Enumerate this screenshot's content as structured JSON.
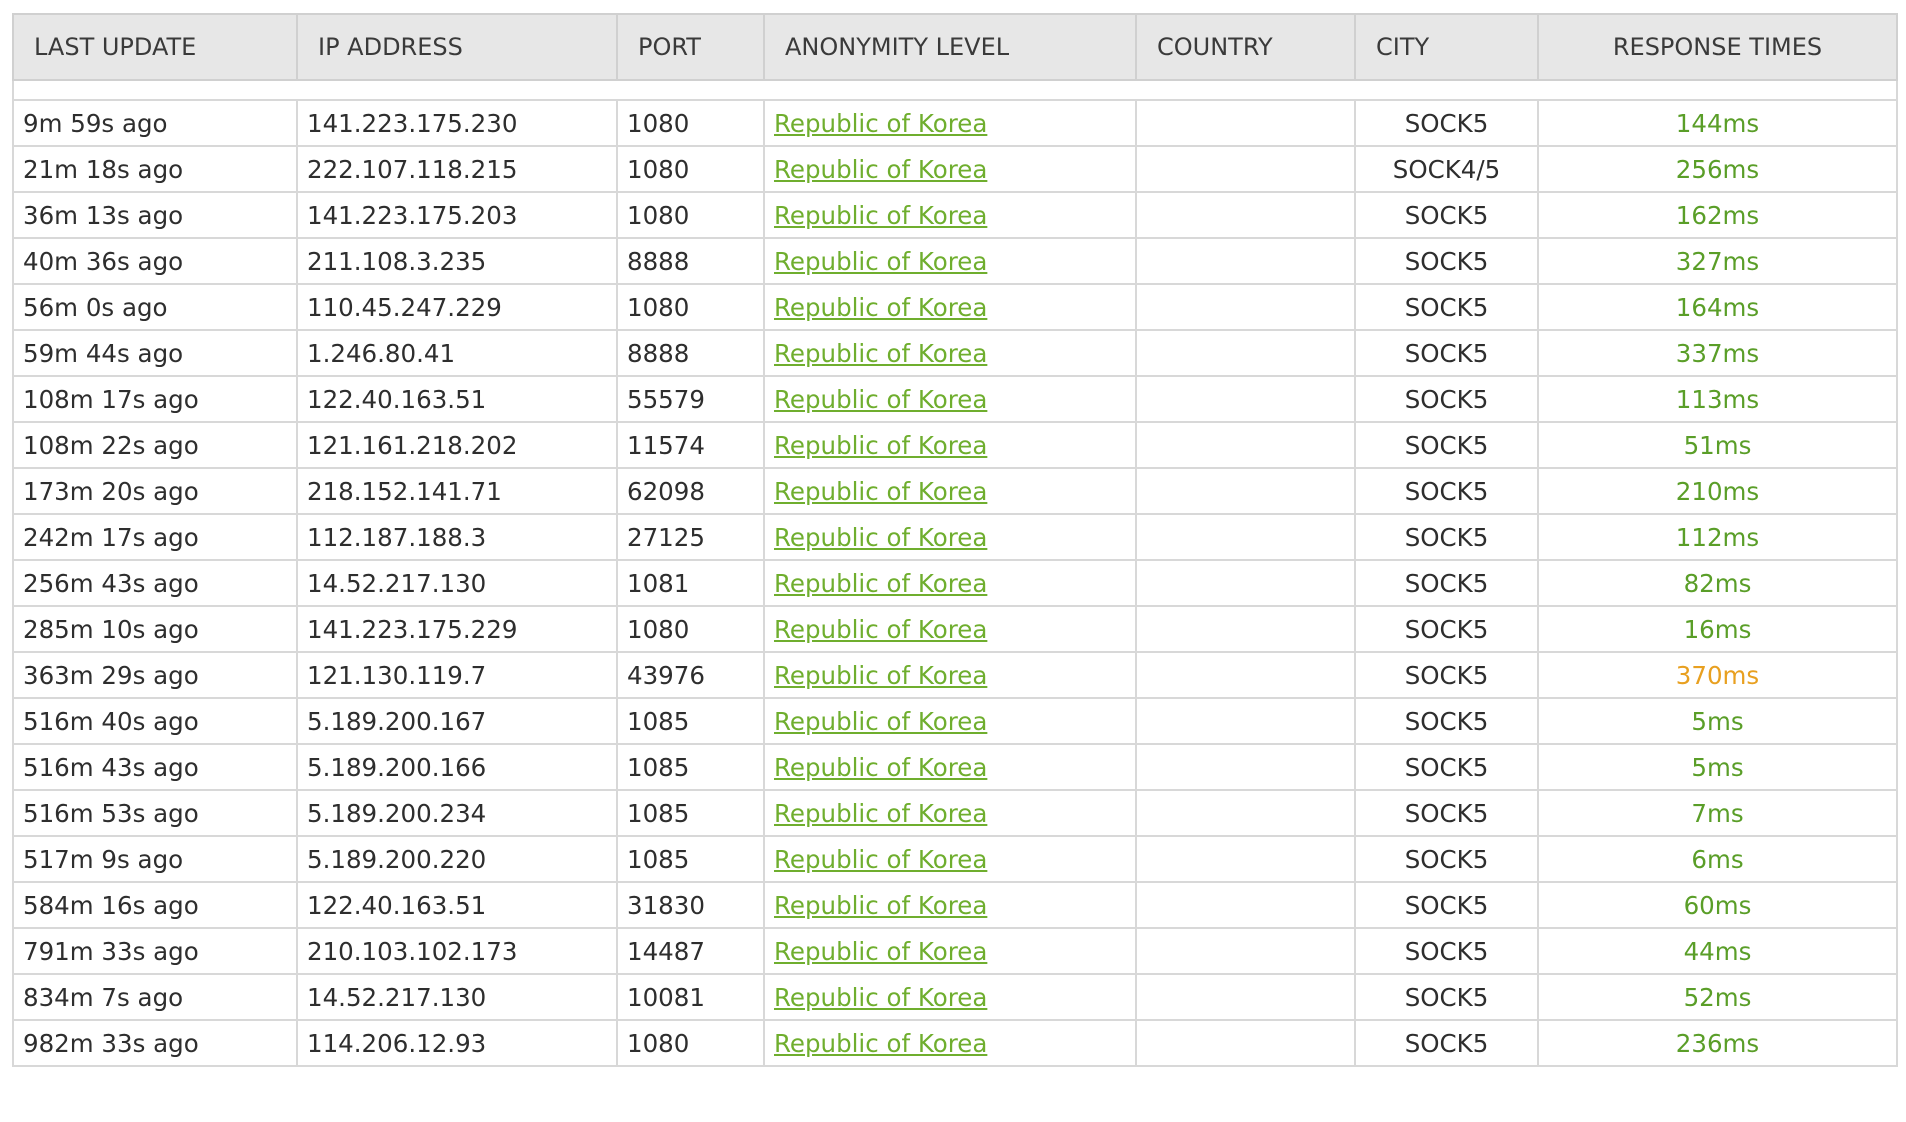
{
  "headers": [
    "LAST UPDATE",
    "IP ADDRESS",
    "PORT",
    "ANONYMITY LEVEL",
    "COUNTRY",
    "CITY",
    "RESPONSE TIMES"
  ],
  "colors": {
    "link": "#6fae2e",
    "fast": "#5a9e28",
    "slow": "#e8a020",
    "header_bg": "#e7e7e7"
  },
  "rows": [
    {
      "updated": "9m 59s ago",
      "ip": "141.223.175.230",
      "port": "1080",
      "anonymity": "Republic of Korea",
      "country": "",
      "city": "SOCK5",
      "response": "144ms",
      "speed": "fast"
    },
    {
      "updated": "21m 18s ago",
      "ip": "222.107.118.215",
      "port": "1080",
      "anonymity": "Republic of Korea",
      "country": "",
      "city": "SOCK4/5",
      "response": "256ms",
      "speed": "fast"
    },
    {
      "updated": "36m 13s ago",
      "ip": "141.223.175.203",
      "port": "1080",
      "anonymity": "Republic of Korea",
      "country": "",
      "city": "SOCK5",
      "response": "162ms",
      "speed": "fast"
    },
    {
      "updated": "40m 36s ago",
      "ip": "211.108.3.235",
      "port": "8888",
      "anonymity": "Republic of Korea",
      "country": "",
      "city": "SOCK5",
      "response": "327ms",
      "speed": "fast"
    },
    {
      "updated": "56m 0s ago",
      "ip": "110.45.247.229",
      "port": "1080",
      "anonymity": "Republic of Korea",
      "country": "",
      "city": "SOCK5",
      "response": "164ms",
      "speed": "fast"
    },
    {
      "updated": "59m 44s ago",
      "ip": "1.246.80.41",
      "port": "8888",
      "anonymity": "Republic of Korea",
      "country": "",
      "city": "SOCK5",
      "response": "337ms",
      "speed": "fast"
    },
    {
      "updated": "108m 17s ago",
      "ip": "122.40.163.51",
      "port": "55579",
      "anonymity": "Republic of Korea",
      "country": "",
      "city": "SOCK5",
      "response": "113ms",
      "speed": "fast"
    },
    {
      "updated": "108m 22s ago",
      "ip": "121.161.218.202",
      "port": "11574",
      "anonymity": "Republic of Korea",
      "country": "",
      "city": "SOCK5",
      "response": "51ms",
      "speed": "fast"
    },
    {
      "updated": "173m 20s ago",
      "ip": "218.152.141.71",
      "port": "62098",
      "anonymity": "Republic of Korea",
      "country": "",
      "city": "SOCK5",
      "response": "210ms",
      "speed": "fast"
    },
    {
      "updated": "242m 17s ago",
      "ip": "112.187.188.3",
      "port": "27125",
      "anonymity": "Republic of Korea",
      "country": "",
      "city": "SOCK5",
      "response": "112ms",
      "speed": "fast"
    },
    {
      "updated": "256m 43s ago",
      "ip": "14.52.217.130",
      "port": "1081",
      "anonymity": "Republic of Korea",
      "country": "",
      "city": "SOCK5",
      "response": "82ms",
      "speed": "fast"
    },
    {
      "updated": "285m 10s ago",
      "ip": "141.223.175.229",
      "port": "1080",
      "anonymity": "Republic of Korea",
      "country": "",
      "city": "SOCK5",
      "response": "16ms",
      "speed": "fast"
    },
    {
      "updated": "363m 29s ago",
      "ip": "121.130.119.7",
      "port": "43976",
      "anonymity": "Republic of Korea",
      "country": "",
      "city": "SOCK5",
      "response": "370ms",
      "speed": "slow"
    },
    {
      "updated": "516m 40s ago",
      "ip": "5.189.200.167",
      "port": "1085",
      "anonymity": "Republic of Korea",
      "country": "",
      "city": "SOCK5",
      "response": "5ms",
      "speed": "fast"
    },
    {
      "updated": "516m 43s ago",
      "ip": "5.189.200.166",
      "port": "1085",
      "anonymity": "Republic of Korea",
      "country": "",
      "city": "SOCK5",
      "response": "5ms",
      "speed": "fast"
    },
    {
      "updated": "516m 53s ago",
      "ip": "5.189.200.234",
      "port": "1085",
      "anonymity": "Republic of Korea",
      "country": "",
      "city": "SOCK5",
      "response": "7ms",
      "speed": "fast"
    },
    {
      "updated": "517m 9s ago",
      "ip": "5.189.200.220",
      "port": "1085",
      "anonymity": "Republic of Korea",
      "country": "",
      "city": "SOCK5",
      "response": "6ms",
      "speed": "fast"
    },
    {
      "updated": "584m 16s ago",
      "ip": "122.40.163.51",
      "port": "31830",
      "anonymity": "Republic of Korea",
      "country": "",
      "city": "SOCK5",
      "response": "60ms",
      "speed": "fast"
    },
    {
      "updated": "791m 33s ago",
      "ip": "210.103.102.173",
      "port": "14487",
      "anonymity": "Republic of Korea",
      "country": "",
      "city": "SOCK5",
      "response": "44ms",
      "speed": "fast"
    },
    {
      "updated": "834m 7s ago",
      "ip": "14.52.217.130",
      "port": "10081",
      "anonymity": "Republic of Korea",
      "country": "",
      "city": "SOCK5",
      "response": "52ms",
      "speed": "fast"
    },
    {
      "updated": "982m 33s ago",
      "ip": "114.206.12.93",
      "port": "1080",
      "anonymity": "Republic of Korea",
      "country": "",
      "city": "SOCK5",
      "response": "236ms",
      "speed": "fast"
    }
  ]
}
